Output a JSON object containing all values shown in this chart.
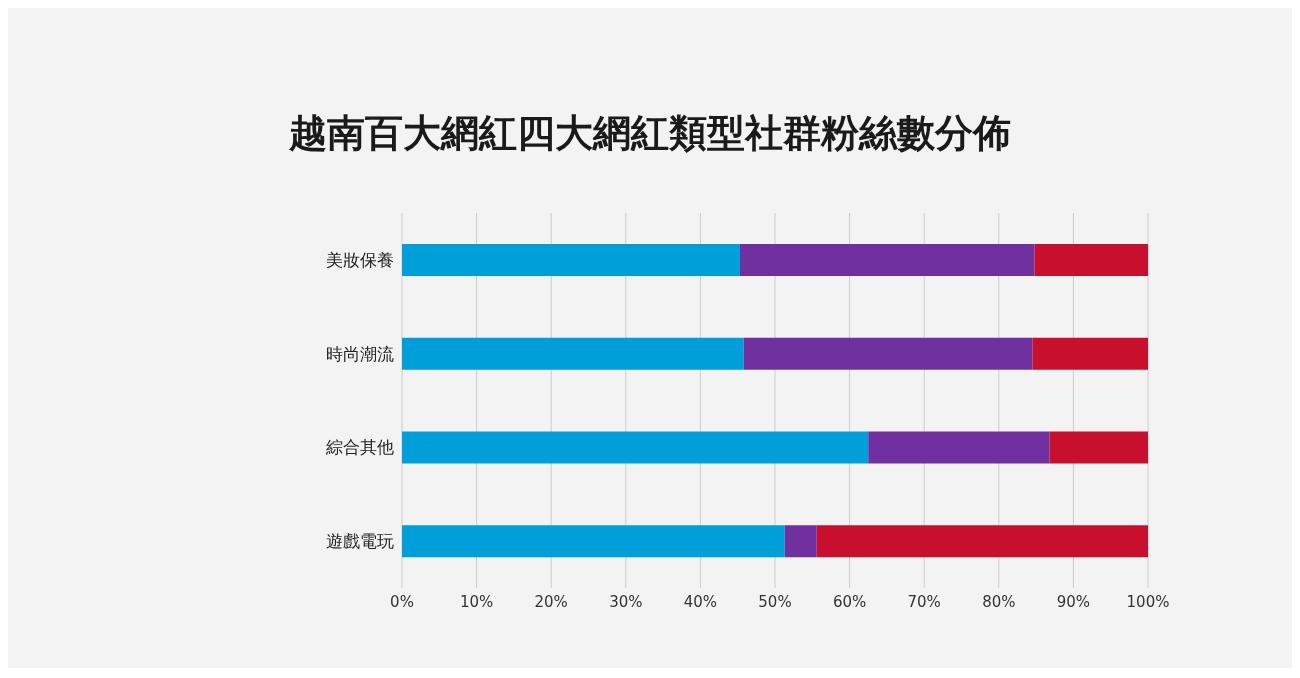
{
  "chart_data": {
    "type": "bar",
    "title": "越南百大網紅四大網紅類型社群粉絲數分佈",
    "orientation": "horizontal",
    "stacked": true,
    "categories": [
      "美妝保養",
      "時尚潮流",
      "綜合其他",
      "遊戲電玩"
    ],
    "series": [
      {
        "color": "#009fd9",
        "values": [
          45.3,
          45.8,
          62.5,
          51.3
        ]
      },
      {
        "color": "#7030a0",
        "values": [
          39.5,
          38.7,
          24.3,
          4.3
        ]
      },
      {
        "color": "#c8102e",
        "values": [
          15.2,
          15.5,
          13.2,
          44.4
        ]
      }
    ],
    "xlim": [
      0,
      100
    ],
    "xticks": [
      {
        "value": 0,
        "label": "0%"
      },
      {
        "value": 10,
        "label": "10%"
      },
      {
        "value": 20,
        "label": "20%"
      },
      {
        "value": 30,
        "label": "30%"
      },
      {
        "value": 40,
        "label": "40%"
      },
      {
        "value": 50,
        "label": "50%"
      },
      {
        "value": 60,
        "label": "60%"
      },
      {
        "value": 70,
        "label": "70%"
      },
      {
        "value": 80,
        "label": "80%"
      },
      {
        "value": 90,
        "label": "90%"
      },
      {
        "value": 100,
        "label": "100%"
      }
    ],
    "grid": "x"
  }
}
